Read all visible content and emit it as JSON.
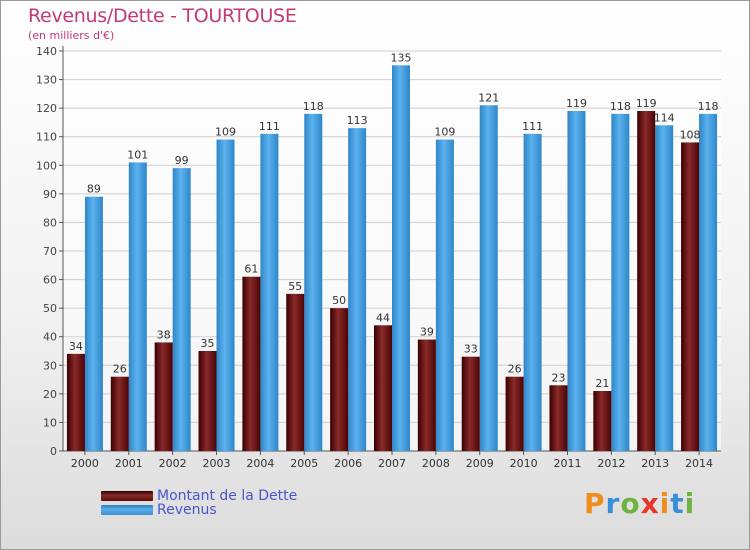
{
  "header": {
    "title": "Revenus/Dette - TOURTOUSE",
    "subtitle": "(en milliers d'€)"
  },
  "colors": {
    "debt": "#7a2020",
    "revenue": "#4aa3e6",
    "title": "#c33a74",
    "legend_text": "#4a55cc"
  },
  "legend": {
    "debt_label": "Montant de la Dette",
    "revenue_label": "Revenus"
  },
  "logo": {
    "text": "Proxiti",
    "letter_colors": [
      "#f08c1e",
      "#3a8fd8",
      "#6cb33f",
      "#e8362a",
      "#f08c1e",
      "#3a8fd8",
      "#6cb33f"
    ]
  },
  "chart_data": {
    "type": "bar",
    "title": "Revenus/Dette - TOURTOUSE",
    "subtitle": "(en milliers d'€)",
    "xlabel": "",
    "ylabel": "",
    "ylim": [
      0,
      140
    ],
    "yticks": [
      0,
      10,
      20,
      30,
      40,
      50,
      60,
      70,
      80,
      90,
      100,
      110,
      120,
      130,
      140
    ],
    "grid": true,
    "legend_position": "bottom-left",
    "categories": [
      "2000",
      "2001",
      "2002",
      "2003",
      "2004",
      "2005",
      "2006",
      "2007",
      "2008",
      "2009",
      "2010",
      "2011",
      "2012",
      "2013",
      "2014"
    ],
    "series": [
      {
        "name": "Montant de la Dette",
        "values": [
          34,
          26,
          38,
          35,
          61,
          55,
          50,
          44,
          39,
          33,
          26,
          23,
          21,
          119,
          108
        ]
      },
      {
        "name": "Revenus",
        "values": [
          89,
          101,
          99,
          109,
          111,
          118,
          113,
          135,
          109,
          121,
          111,
          119,
          118,
          114,
          118
        ]
      }
    ]
  }
}
